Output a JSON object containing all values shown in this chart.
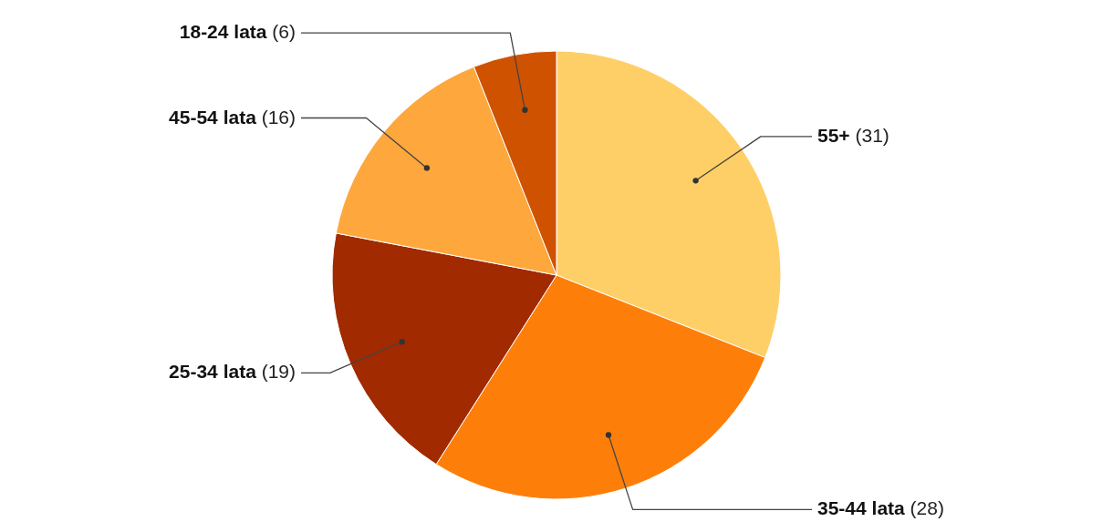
{
  "chart_data": {
    "type": "pie",
    "categories": [
      "55+",
      "35-44 lata",
      "25-34 lata",
      "45-54 lata",
      "18-24 lata"
    ],
    "values": [
      31,
      28,
      19,
      16,
      6
    ],
    "colors": [
      "#fecf66",
      "#fd7f0a",
      "#a12a00",
      "#fda73d",
      "#cf5200"
    ],
    "value_labels": [
      "(31)",
      "(28)",
      "(19)",
      "(16)",
      "(6)"
    ]
  }
}
